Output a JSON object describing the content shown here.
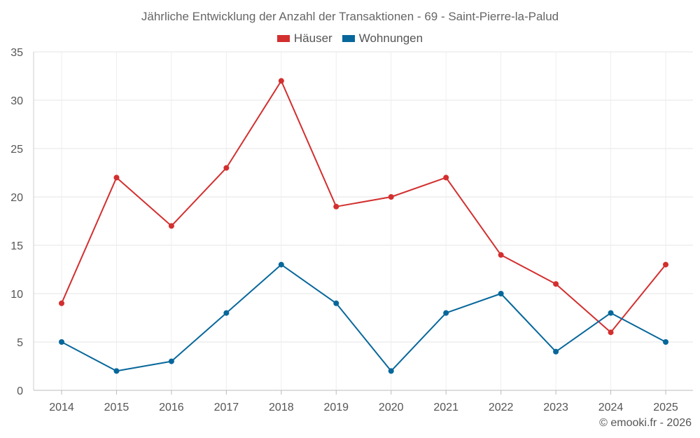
{
  "chart_data": {
    "type": "line",
    "title": "Jährliche Entwicklung der Anzahl der Transaktionen - 69 - Saint-Pierre-la-Palud",
    "categories": [
      "2014",
      "2015",
      "2016",
      "2017",
      "2018",
      "2019",
      "2020",
      "2021",
      "2022",
      "2023",
      "2024",
      "2025"
    ],
    "series": [
      {
        "name": "Häuser",
        "color": "#d32f2f",
        "values": [
          9,
          22,
          17,
          23,
          32,
          19,
          20,
          22,
          14,
          11,
          6,
          13
        ]
      },
      {
        "name": "Wohnungen",
        "color": "#07679b",
        "values": [
          5,
          2,
          3,
          8,
          13,
          9,
          2,
          8,
          10,
          4,
          8,
          5
        ]
      }
    ],
    "ylim": [
      0,
      35
    ],
    "yticks": [
      0,
      5,
      10,
      15,
      20,
      25,
      30,
      35
    ],
    "grid": true,
    "legend_position": "top-center",
    "xlabel": "",
    "ylabel": ""
  },
  "credit": "© emooki.fr - 2026"
}
